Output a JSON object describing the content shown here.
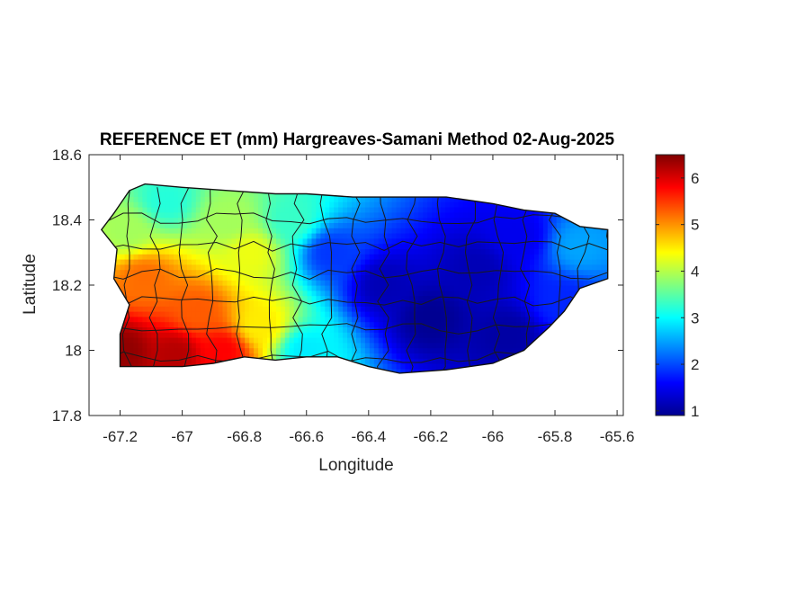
{
  "chart_data": {
    "type": "heatmap",
    "title": "REFERENCE ET (mm) Hargreaves-Samani Method  02-Aug-2025",
    "xlabel": "Longitude",
    "ylabel": "Latitude",
    "xlim": [
      -67.3,
      -65.58
    ],
    "ylim": [
      17.8,
      18.6
    ],
    "x_ticks": [
      -67.2,
      -67,
      -66.8,
      -66.6,
      -66.4,
      -66.2,
      -66,
      -65.8,
      -65.6
    ],
    "x_tick_labels": [
      "-67.2",
      "-67",
      "-66.8",
      "-66.6",
      "-66.4",
      "-66.2",
      "-66",
      "-65.8",
      "-65.6"
    ],
    "y_ticks": [
      17.8,
      18,
      18.2,
      18.4,
      18.6
    ],
    "y_tick_labels": [
      "17.8",
      "18",
      "18.2",
      "18.4",
      "18.6"
    ],
    "colormap": "jet",
    "colorbar": {
      "range": [
        0.9,
        6.5
      ],
      "ticks": [
        1,
        2,
        3,
        4,
        5,
        6
      ],
      "tick_labels": [
        "1",
        "2",
        "3",
        "4",
        "5",
        "6"
      ]
    },
    "island_outline": [
      [
        -67.26,
        18.37
      ],
      [
        -67.22,
        18.42
      ],
      [
        -67.17,
        18.49
      ],
      [
        -67.12,
        18.51
      ],
      [
        -67.0,
        18.5
      ],
      [
        -66.85,
        18.49
      ],
      [
        -66.7,
        18.48
      ],
      [
        -66.6,
        18.48
      ],
      [
        -66.45,
        18.47
      ],
      [
        -66.3,
        18.47
      ],
      [
        -66.15,
        18.47
      ],
      [
        -66.0,
        18.45
      ],
      [
        -65.9,
        18.43
      ],
      [
        -65.8,
        18.42
      ],
      [
        -65.72,
        18.38
      ],
      [
        -65.63,
        18.37
      ],
      [
        -65.63,
        18.22
      ],
      [
        -65.72,
        18.19
      ],
      [
        -65.77,
        18.12
      ],
      [
        -65.82,
        18.07
      ],
      [
        -65.9,
        18.0
      ],
      [
        -66.0,
        17.96
      ],
      [
        -66.15,
        17.94
      ],
      [
        -66.3,
        17.93
      ],
      [
        -66.4,
        17.95
      ],
      [
        -66.5,
        17.98
      ],
      [
        -66.6,
        17.98
      ],
      [
        -66.7,
        17.97
      ],
      [
        -66.8,
        17.98
      ],
      [
        -66.9,
        17.96
      ],
      [
        -67.0,
        17.95
      ],
      [
        -67.1,
        17.95
      ],
      [
        -67.2,
        17.95
      ],
      [
        -67.2,
        18.05
      ],
      [
        -67.17,
        18.14
      ],
      [
        -67.22,
        18.22
      ],
      [
        -67.21,
        18.31
      ]
    ],
    "et_field_samples": [
      {
        "lon": -67.19,
        "lat": 18.0,
        "et": 6.4
      },
      {
        "lon": -67.02,
        "lat": 17.99,
        "et": 6.2
      },
      {
        "lon": -66.87,
        "lat": 18.0,
        "et": 5.8
      },
      {
        "lon": -67.12,
        "lat": 18.22,
        "et": 5.2
      },
      {
        "lon": -66.95,
        "lat": 18.12,
        "et": 5.3
      },
      {
        "lon": -67.18,
        "lat": 18.37,
        "et": 3.9
      },
      {
        "lon": -67.05,
        "lat": 18.46,
        "et": 3.2
      },
      {
        "lon": -66.85,
        "lat": 18.4,
        "et": 3.9
      },
      {
        "lon": -66.78,
        "lat": 18.3,
        "et": 4.3
      },
      {
        "lon": -66.75,
        "lat": 18.08,
        "et": 4.5
      },
      {
        "lon": -66.65,
        "lat": 18.4,
        "et": 3.3
      },
      {
        "lon": -66.6,
        "lat": 18.0,
        "et": 2.9
      },
      {
        "lon": -66.52,
        "lat": 18.3,
        "et": 1.9
      },
      {
        "lon": -66.35,
        "lat": 18.2,
        "et": 1.2
      },
      {
        "lon": -66.2,
        "lat": 18.1,
        "et": 1.0
      },
      {
        "lon": -66.05,
        "lat": 18.25,
        "et": 1.2
      },
      {
        "lon": -65.92,
        "lat": 18.35,
        "et": 1.5
      },
      {
        "lon": -65.78,
        "lat": 18.15,
        "et": 1.8
      },
      {
        "lon": -65.72,
        "lat": 18.32,
        "et": 2.5
      },
      {
        "lon": -65.95,
        "lat": 18.05,
        "et": 1.1
      }
    ]
  }
}
